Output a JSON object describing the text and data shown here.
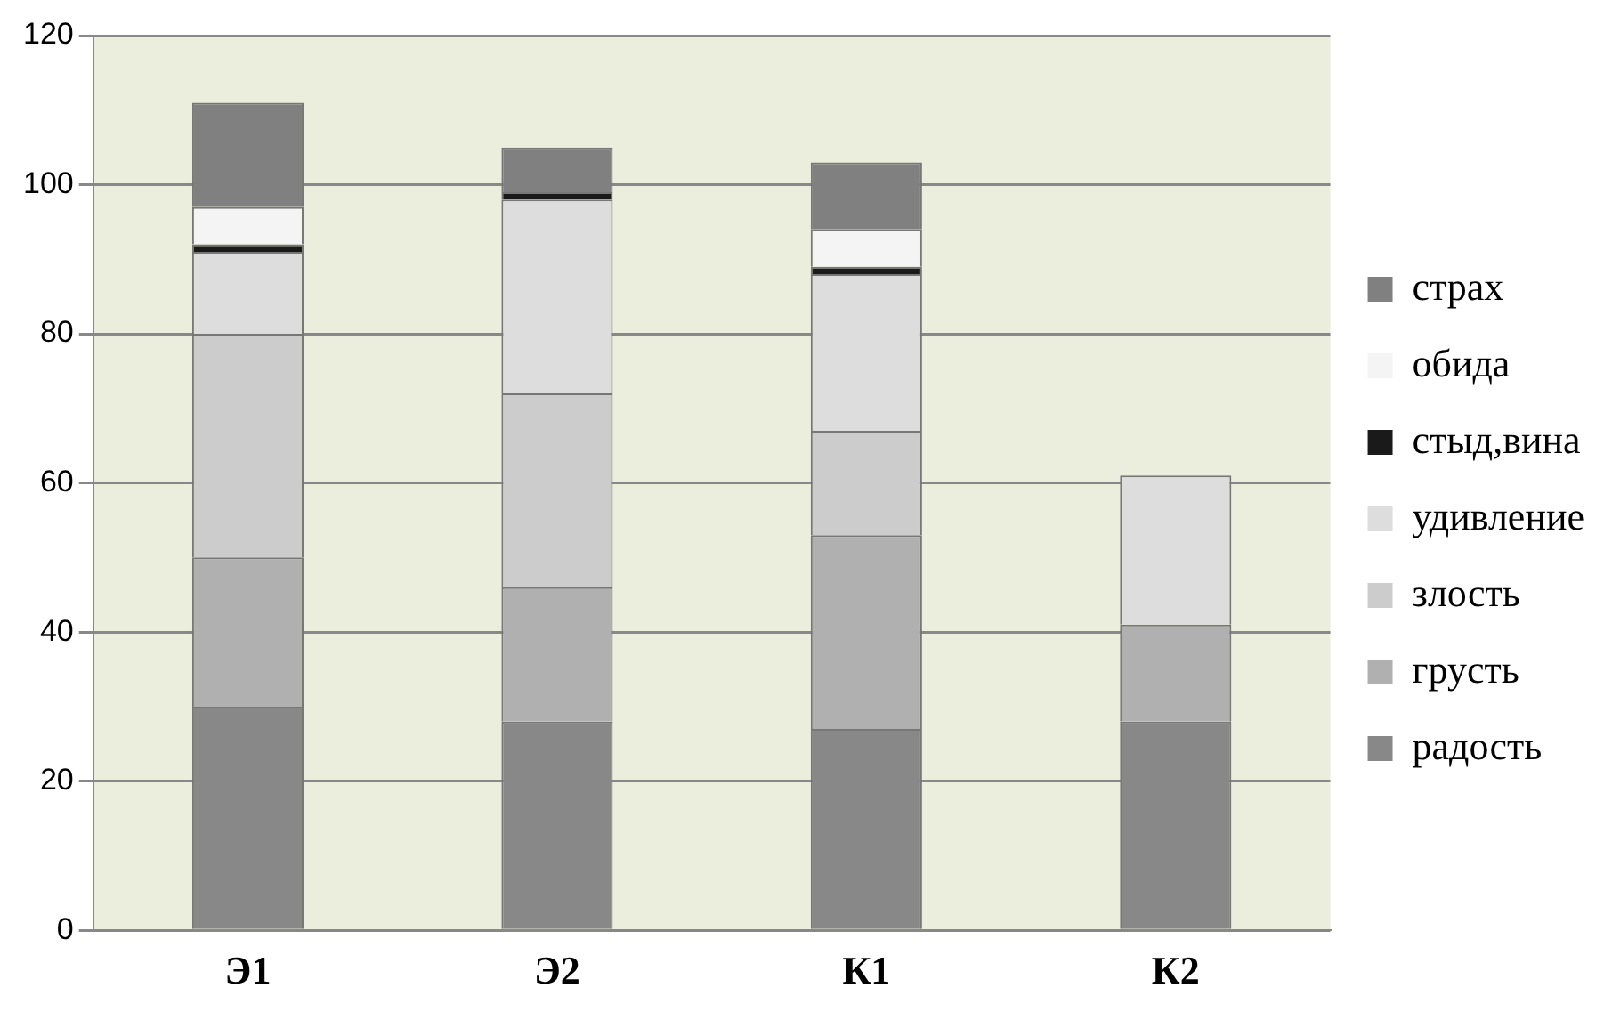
{
  "chart_data": {
    "type": "bar",
    "stacked": true,
    "categories": [
      "Э1",
      "Э2",
      "К1",
      "К2"
    ],
    "series": [
      {
        "name": "радость",
        "color": "#888888",
        "values": [
          30,
          28,
          27,
          28
        ]
      },
      {
        "name": "грусть",
        "color": "#b0b0b0",
        "values": [
          20,
          18,
          26,
          13
        ]
      },
      {
        "name": "злость",
        "color": "#cccccc",
        "values": [
          30,
          26,
          14,
          0
        ]
      },
      {
        "name": "удивление",
        "color": "#dddddd",
        "values": [
          11,
          26,
          21,
          20
        ]
      },
      {
        "name": "стыд,вина",
        "color": "#1a1a1a",
        "values": [
          1,
          1,
          1,
          0
        ]
      },
      {
        "name": "обида",
        "color": "#f4f4f4",
        "values": [
          5,
          0,
          5,
          0
        ]
      },
      {
        "name": "страх",
        "color": "#808080",
        "values": [
          14,
          6,
          9,
          0
        ]
      }
    ],
    "ylim": [
      0,
      120
    ],
    "yticks": [
      0,
      20,
      40,
      60,
      80,
      100,
      120
    ],
    "grid": "y",
    "legend": "right"
  }
}
